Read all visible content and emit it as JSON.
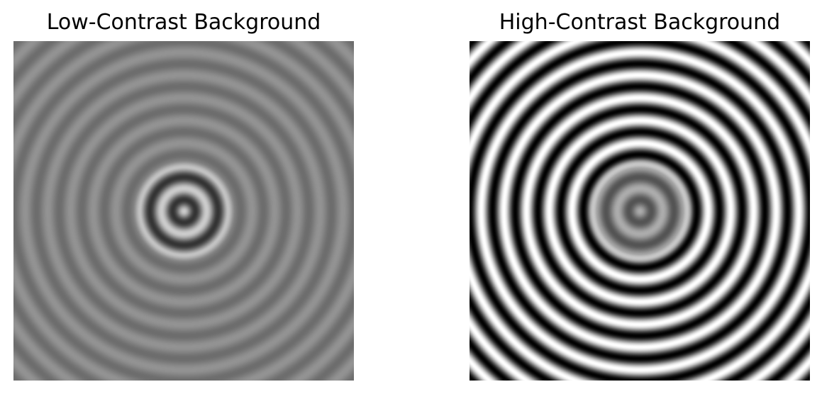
{
  "panels": [
    {
      "title": "Low-Contrast Background",
      "background_contrast": 0.15,
      "center_contrast": 0.6,
      "ring_frequency_cycles_per_image": 15
    },
    {
      "title": "High-Contrast Background",
      "background_contrast": 1.0,
      "center_contrast": 0.35,
      "ring_frequency_cycles_per_image": 15
    }
  ],
  "colors": {
    "page_background": "#ffffff",
    "mean_gray": "#808080"
  }
}
